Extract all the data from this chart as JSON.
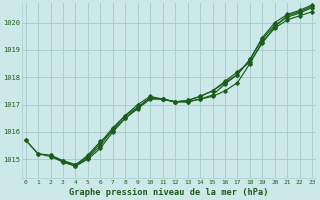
{
  "bg_color": "#cce8e8",
  "grid_color": "#aacece",
  "line_color": "#1a5c1a",
  "title": "Graphe pression niveau de la mer (hPa)",
  "xlim": [
    -0.3,
    23.3
  ],
  "ylim": [
    1014.3,
    1020.7
  ],
  "yticks": [
    1015,
    1016,
    1017,
    1018,
    1019,
    1020
  ],
  "xticks": [
    0,
    1,
    2,
    3,
    4,
    5,
    6,
    7,
    8,
    9,
    10,
    11,
    12,
    13,
    14,
    15,
    16,
    17,
    18,
    19,
    20,
    21,
    22,
    23
  ],
  "series": [
    {
      "x": [
        0,
        1,
        2,
        3,
        4,
        5,
        6,
        7,
        8,
        9,
        10,
        11,
        12,
        13,
        14,
        15,
        16,
        17,
        18,
        19,
        20,
        21,
        22,
        23
      ],
      "y": [
        1015.7,
        1015.2,
        1015.1,
        1014.9,
        1014.75,
        1015.0,
        1015.4,
        1016.0,
        1016.5,
        1016.85,
        1017.2,
        1017.2,
        1017.1,
        1017.1,
        1017.2,
        1017.3,
        1017.5,
        1017.8,
        1018.5,
        1019.3,
        1019.8,
        1020.1,
        1020.25,
        1020.4
      ]
    },
    {
      "x": [
        0,
        1,
        2,
        3,
        4,
        5,
        6,
        7,
        8,
        9,
        10,
        11,
        12,
        13,
        14,
        15,
        16,
        17,
        18,
        19,
        20,
        21,
        22,
        23
      ],
      "y": [
        1015.7,
        1015.2,
        1015.15,
        1014.9,
        1014.75,
        1015.05,
        1015.5,
        1016.1,
        1016.6,
        1016.9,
        1017.25,
        1017.2,
        1017.1,
        1017.1,
        1017.2,
        1017.35,
        1017.75,
        1018.1,
        1018.65,
        1019.4,
        1019.9,
        1020.2,
        1020.35,
        1020.55
      ]
    },
    {
      "x": [
        2,
        3,
        4,
        5,
        6,
        7,
        8,
        9,
        10,
        11,
        12,
        13,
        14,
        15,
        16,
        17,
        18,
        19,
        20,
        21,
        22,
        23
      ],
      "y": [
        1015.15,
        1014.95,
        1014.8,
        1015.1,
        1015.6,
        1016.15,
        1016.6,
        1017.0,
        1017.3,
        1017.2,
        1017.1,
        1017.15,
        1017.3,
        1017.5,
        1017.8,
        1018.1,
        1018.65,
        1019.45,
        1020.0,
        1020.3,
        1020.45,
        1020.65
      ]
    },
    {
      "x": [
        3,
        4,
        5,
        6,
        7,
        8,
        9,
        10,
        11,
        12,
        13,
        14,
        15,
        16,
        17,
        18,
        19,
        20,
        21,
        22,
        23
      ],
      "y": [
        1014.95,
        1014.78,
        1015.15,
        1015.65,
        1016.05,
        1016.5,
        1016.9,
        1017.25,
        1017.2,
        1017.1,
        1017.15,
        1017.3,
        1017.5,
        1017.85,
        1018.2,
        1018.55,
        1019.25,
        1019.85,
        1020.25,
        1020.4,
        1020.6
      ]
    }
  ]
}
